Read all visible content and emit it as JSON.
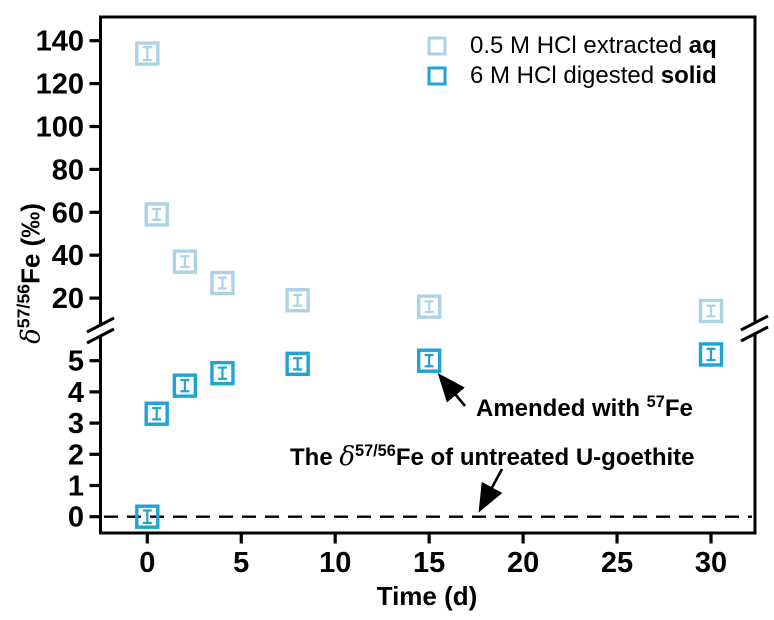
{
  "figure": {
    "xlabel": "Time (d)",
    "ylabel": {
      "delta": "δ",
      "sup": "57/56",
      "element": "Fe",
      "units": " (‰)"
    },
    "legend": [
      {
        "label": "0.5 M HCl extracted ",
        "label_bold": "aq",
        "color": "#abd3e8"
      },
      {
        "label": "6 M HCl digested ",
        "label_bold": "solid",
        "color": "#1fa3d1"
      }
    ],
    "annotations": [
      {
        "prefix": "Amended with ",
        "sup": "57",
        "suffix": "Fe",
        "arrow_from": [
          465,
          406
        ],
        "arrow_to": [
          441,
          377
        ]
      },
      {
        "prefix": "The ",
        "delta": "δ",
        "sup": "57/56",
        "suffix": "Fe of untreated U-goethite",
        "arrow_from": [
          502,
          469
        ],
        "arrow_to": [
          481,
          508
        ]
      }
    ]
  },
  "chart_data": {
    "type": "scatter",
    "broken_y_axis": true,
    "title": "",
    "xlabel": "Time (d)",
    "ylabel": "δ57/56Fe (‰)",
    "x_ticks": [
      0,
      5,
      10,
      15,
      20,
      25,
      30
    ],
    "upper_y_ticks": [
      20,
      40,
      60,
      80,
      100,
      120,
      140
    ],
    "lower_y_ticks": [
      0,
      1,
      2,
      3,
      4,
      5
    ],
    "xlim": [
      -2.5,
      32.5
    ],
    "upper_ylim": [
      10,
      151
    ],
    "lower_ylim": [
      -0.5,
      5.9
    ],
    "grid": false,
    "legend_position": "top-right",
    "series": [
      {
        "name": "0.5 M HCl extracted aq",
        "axis": "upper",
        "color": "#abd3e8",
        "x": [
          0,
          0.5,
          2,
          4,
          8,
          15,
          30
        ],
        "y": [
          134,
          59,
          37,
          27,
          19,
          16,
          14
        ],
        "yerr": [
          3,
          2.5,
          2.5,
          2.5,
          2.5,
          2.5,
          2.5
        ]
      },
      {
        "name": "6 M HCl digested solid",
        "axis": "lower",
        "color": "#1fa3d1",
        "x": [
          0,
          0.5,
          2,
          4,
          8,
          15,
          30
        ],
        "y": [
          0.0,
          3.3,
          4.2,
          4.6,
          4.9,
          5.0,
          5.2
        ],
        "yerr": [
          0.2,
          0.18,
          0.18,
          0.18,
          0.18,
          0.18,
          0.18
        ]
      }
    ],
    "reference_line": {
      "y": 0,
      "axis": "lower",
      "style": "dashed",
      "meaning": "The δ57/56Fe of untreated U-goethite"
    }
  }
}
